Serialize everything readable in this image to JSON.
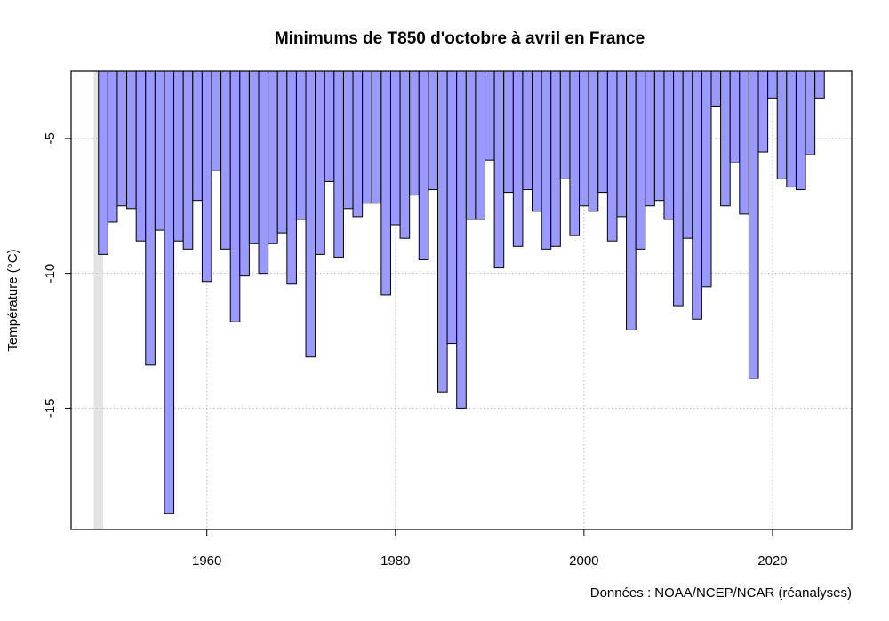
{
  "chart_data": {
    "type": "bar",
    "title": "Minimums de T850 d'octobre à avril en France",
    "xlabel": "",
    "ylabel": "Température (°C)",
    "caption": "Données : NOAA/NCEP/NCAR (réanalyses)",
    "xlim": [
      1945.6,
      2028.4
    ],
    "ylim": [
      -19.5,
      -2.5
    ],
    "x_ticks": [
      1960,
      1980,
      2000,
      2020
    ],
    "y_ticks": [
      -5,
      -10,
      -15
    ],
    "grid": true,
    "bar_color": "#9999ff",
    "bar_border_color": "#000000",
    "grid_color": "#bbbbbb",
    "highlight_span": [
      1948,
      1949
    ],
    "highlight_color": "#e3e3e3",
    "years": [
      1949,
      1950,
      1951,
      1952,
      1953,
      1954,
      1955,
      1956,
      1957,
      1958,
      1959,
      1960,
      1961,
      1962,
      1963,
      1964,
      1965,
      1966,
      1967,
      1968,
      1969,
      1970,
      1971,
      1972,
      1973,
      1974,
      1975,
      1976,
      1977,
      1978,
      1979,
      1980,
      1981,
      1982,
      1983,
      1984,
      1985,
      1986,
      1987,
      1988,
      1989,
      1990,
      1991,
      1992,
      1993,
      1994,
      1995,
      1996,
      1997,
      1998,
      1999,
      2000,
      2001,
      2002,
      2003,
      2004,
      2005,
      2006,
      2007,
      2008,
      2009,
      2010,
      2011,
      2012,
      2013,
      2014,
      2015,
      2016,
      2017,
      2018,
      2019,
      2020,
      2021,
      2022,
      2023,
      2024,
      2025
    ],
    "values": [
      -9.3,
      -8.1,
      -7.5,
      -7.6,
      -8.8,
      -13.4,
      -8.4,
      -18.9,
      -8.8,
      -9.1,
      -7.3,
      -10.3,
      -6.2,
      -9.1,
      -11.8,
      -10.1,
      -8.9,
      -10.0,
      -8.9,
      -8.5,
      -10.4,
      -8.0,
      -13.1,
      -9.3,
      -6.6,
      -9.4,
      -7.6,
      -7.9,
      -7.4,
      -7.4,
      -10.8,
      -8.2,
      -8.7,
      -7.1,
      -9.5,
      -6.9,
      -14.4,
      -12.6,
      -15.0,
      -8.0,
      -8.0,
      -5.8,
      -9.8,
      -7.0,
      -9.0,
      -6.9,
      -7.7,
      -9.1,
      -9.0,
      -6.5,
      -8.6,
      -7.5,
      -7.7,
      -7.0,
      -8.8,
      -7.9,
      -12.1,
      -9.1,
      -7.5,
      -7.3,
      -8.0,
      -11.2,
      -8.7,
      -11.7,
      -10.5,
      -3.8,
      -7.5,
      -5.9,
      -7.8,
      -13.9,
      -5.5,
      -3.5,
      -6.5,
      -6.8,
      -6.9,
      -5.6,
      -3.5
    ]
  }
}
